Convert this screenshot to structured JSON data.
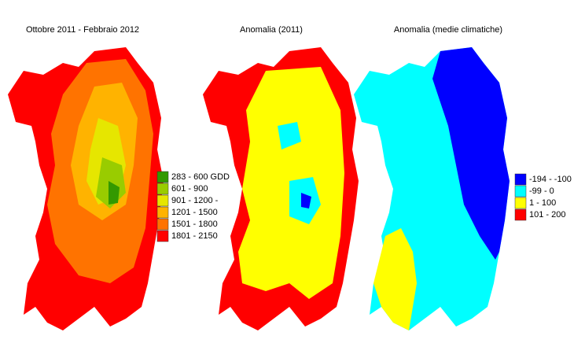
{
  "panels": [
    {
      "title": "Ottobre 2011 - Febbraio 2012",
      "legend": [
        {
          "label": "283 - 600 GDD",
          "color": "#339900"
        },
        {
          "label": "601 - 900",
          "color": "#99cc00"
        },
        {
          "label": "901 - 1200 -",
          "color": "#e6e600"
        },
        {
          "label": "1201 - 1500",
          "color": "#ffb300"
        },
        {
          "label": "1501 - 1800",
          "color": "#ff7300"
        },
        {
          "label": "1801 - 2150",
          "color": "#ff0000"
        }
      ]
    },
    {
      "title": "Anomalia (2011)"
    },
    {
      "title": "Anomalia (medie climatiche)",
      "legend": [
        {
          "label": "-194 - -100",
          "color": "#0000ff"
        },
        {
          "label": "-99 - 0",
          "color": "#00ffff"
        },
        {
          "label": "1 - 100",
          "color": "#ffff00"
        },
        {
          "label": "101 - 200",
          "color": "#ff0000"
        }
      ]
    }
  ]
}
